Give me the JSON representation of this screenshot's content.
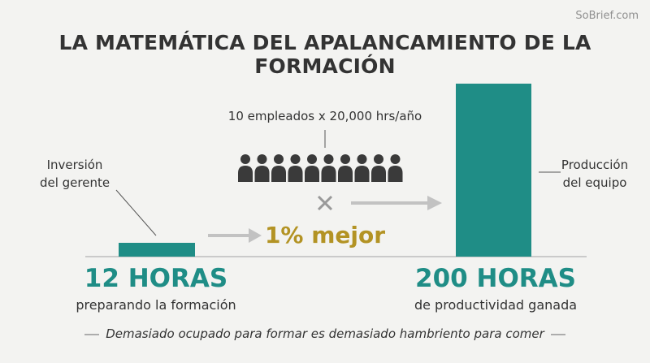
{
  "watermark": "SoBrief.com",
  "title": "LA MATEMÁTICA DEL APALANCAMIENTO DE LA FORMACIÓN",
  "left": {
    "label_line1": "Inversión",
    "label_line2": "del gerente",
    "big_value": "12 HORAS",
    "sub_text": "preparando la formación"
  },
  "middle": {
    "employees_label": "10 empleados x 20,000 hrs/año",
    "employee_count": 10,
    "multiply_symbol": "×",
    "improvement": "1% mejor"
  },
  "right": {
    "label_line1": "Producción",
    "label_line2": "del equipo",
    "big_value": "200 HORAS",
    "sub_text": "de productividad ganada"
  },
  "quote": "Demasiado ocupado para formar es demasiado hambriento para comer",
  "colors": {
    "teal": "#1f8d86",
    "gold": "#b39324",
    "dark": "#333333",
    "arrow_gray": "#c2c2c2",
    "person": "#3a3a3a"
  }
}
